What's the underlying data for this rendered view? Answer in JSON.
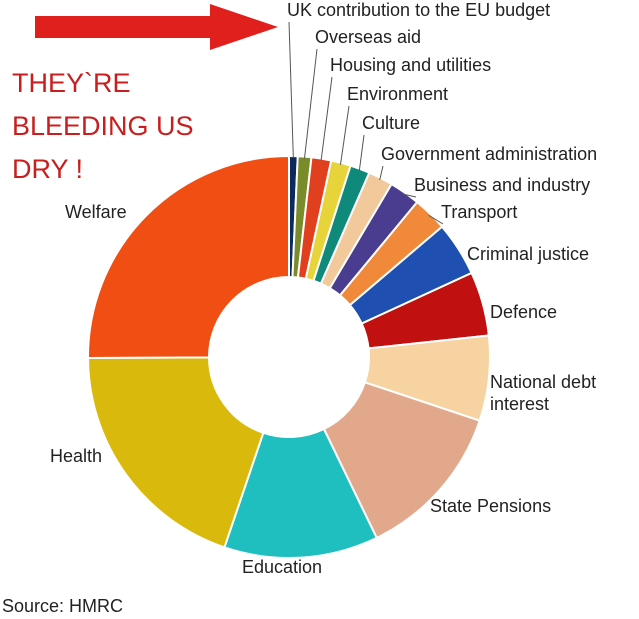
{
  "chart_data": {
    "type": "donut",
    "annotation": [
      "THEY`RE",
      "BLEEDING US",
      "DRY !"
    ],
    "source": "Source: HMRC",
    "categories": [
      "UK contribution to the EU budget",
      "Overseas aid",
      "Housing and utilities",
      "Environment",
      "Culture",
      "Government administration",
      "Business and industry",
      "Transport",
      "Criminal justice",
      "Defence",
      "National debt interest",
      "State Pensions",
      "Education",
      "Health",
      "Welfare"
    ],
    "values": [
      0.7,
      1.1,
      1.6,
      1.6,
      1.6,
      2.0,
      2.5,
      2.8,
      4.4,
      5.2,
      6.9,
      12.8,
      12.5,
      19.9,
      25.3
    ],
    "colors": [
      "#0d2a5c",
      "#7a8c2a",
      "#e0401e",
      "#e6d43a",
      "#0f8a7a",
      "#f2c99a",
      "#4a3d8f",
      "#f08a3a",
      "#1f4fb0",
      "#c01010",
      "#f6d3a0",
      "#e2a88c",
      "#1fbfbf",
      "#d9b90c",
      "#f04e12"
    ]
  }
}
